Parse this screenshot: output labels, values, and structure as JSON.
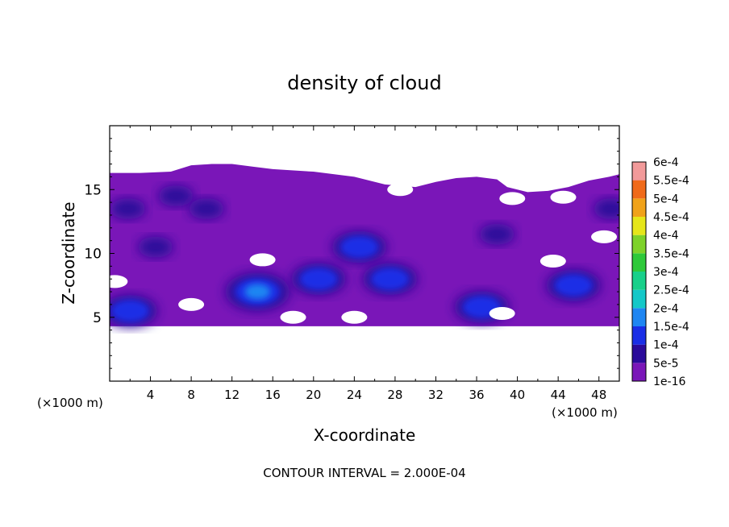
{
  "chart_data": {
    "type": "heatmap",
    "title": "density of cloud",
    "xlabel": "X-coordinate",
    "ylabel": "Z-coordinate",
    "x_unit_left": "(×1000 m)",
    "x_unit_right": "(×1000 m)",
    "footer": "CONTOUR INTERVAL = 2.000E-04",
    "xlim": [
      0,
      50
    ],
    "ylim": [
      0,
      20
    ],
    "x_ticks": [
      4,
      8,
      12,
      16,
      20,
      24,
      28,
      32,
      36,
      40,
      44,
      48
    ],
    "y_ticks": [
      5,
      10,
      15
    ],
    "x_tick_labels": [
      "4",
      "8",
      "12",
      "16",
      "20",
      "24",
      "28",
      "32",
      "36",
      "40",
      "44",
      "48"
    ],
    "y_tick_labels": [
      "5",
      "10",
      "15"
    ],
    "colorbar": {
      "levels": [
        "1e-16",
        "5e-5",
        "1e-4",
        "1.5e-4",
        "2e-4",
        "2.5e-4",
        "3e-4",
        "3.5e-4",
        "4e-4",
        "4.5e-4",
        "5e-4",
        "5.5e-4",
        "6e-4"
      ],
      "colors": [
        "#7a16b8",
        "#2a0a9a",
        "#1a2ee6",
        "#1f86f2",
        "#14c8c8",
        "#18d08a",
        "#2ec93a",
        "#7ed22a",
        "#e6e61a",
        "#f0a21a",
        "#f06a1a",
        "#f03a2a",
        "#f29a9a"
      ]
    },
    "cloud_top_profile": {
      "x": [
        0,
        3,
        6,
        8,
        10,
        12,
        14,
        16,
        20,
        24,
        27,
        30,
        32,
        34,
        36,
        38,
        39,
        41,
        43,
        45,
        47,
        49,
        50
      ],
      "z": [
        16.3,
        16.3,
        16.4,
        16.9,
        17.0,
        17.0,
        16.8,
        16.6,
        16.4,
        16.0,
        15.4,
        15.2,
        15.6,
        15.9,
        16.0,
        15.8,
        15.2,
        14.8,
        14.9,
        15.2,
        15.7,
        16.0,
        16.2
      ]
    },
    "cloud_base_z": 4.3,
    "features": [
      {
        "x": 1.8,
        "z": 13.5,
        "level": 1
      },
      {
        "x": 6.5,
        "z": 14.5,
        "level": 1
      },
      {
        "x": 9.5,
        "z": 13.5,
        "level": 1
      },
      {
        "x": 4.5,
        "z": 10.5,
        "level": 1
      },
      {
        "x": 2.0,
        "z": 5.5,
        "level": 2
      },
      {
        "x": 14.5,
        "z": 7.0,
        "level": 3
      },
      {
        "x": 20.5,
        "z": 8.0,
        "level": 2
      },
      {
        "x": 24.5,
        "z": 10.5,
        "level": 2
      },
      {
        "x": 27.5,
        "z": 8.0,
        "level": 2
      },
      {
        "x": 36.5,
        "z": 5.8,
        "level": 2
      },
      {
        "x": 45.5,
        "z": 7.5,
        "level": 2
      },
      {
        "x": 38.0,
        "z": 11.5,
        "level": 1
      },
      {
        "x": 49.2,
        "z": 13.5,
        "level": 1
      }
    ],
    "holes": [
      {
        "x": 28.5,
        "z": 15.0
      },
      {
        "x": 39.5,
        "z": 14.3
      },
      {
        "x": 44.5,
        "z": 14.4
      },
      {
        "x": 43.5,
        "z": 9.4
      },
      {
        "x": 48.5,
        "z": 11.3
      },
      {
        "x": 15.0,
        "z": 9.5
      },
      {
        "x": 0.5,
        "z": 7.8
      },
      {
        "x": 8.0,
        "z": 6.0
      },
      {
        "x": 38.5,
        "z": 5.3
      },
      {
        "x": 18.0,
        "z": 5.0
      },
      {
        "x": 24.0,
        "z": 5.0
      }
    ]
  }
}
